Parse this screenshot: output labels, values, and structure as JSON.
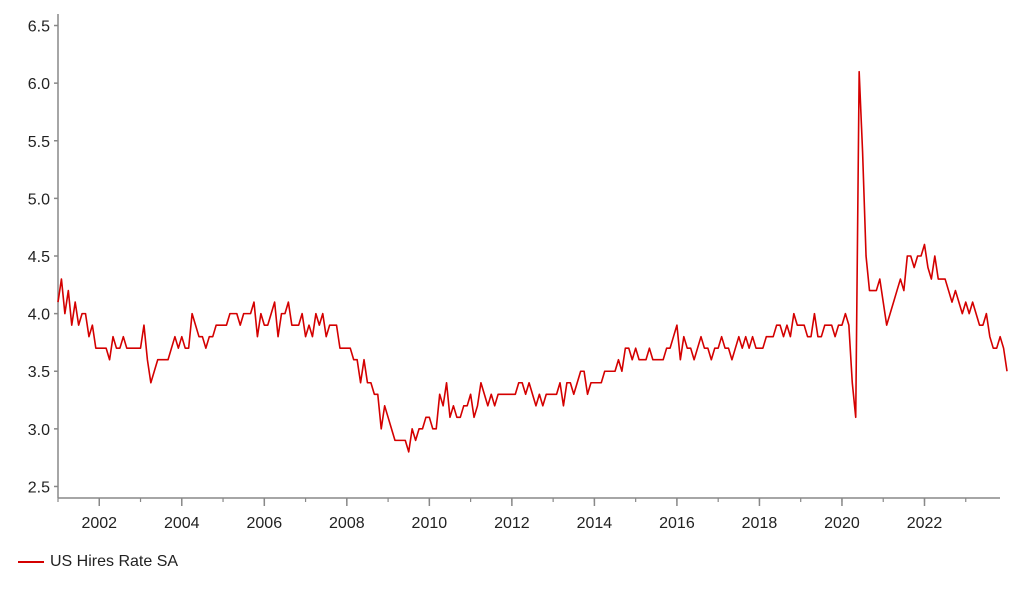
{
  "chart_data": {
    "type": "line",
    "title": "",
    "xlabel": "",
    "ylabel": "",
    "xlim": [
      2001.0,
      2023.83
    ],
    "ylim": [
      2.4,
      6.6
    ],
    "x_ticks": [
      "2002",
      "2004",
      "2006",
      "2008",
      "2010",
      "2012",
      "2014",
      "2016",
      "2018",
      "2020",
      "2022"
    ],
    "y_ticks": [
      "2.5",
      "3.0",
      "3.5",
      "4.0",
      "4.5",
      "5.0",
      "5.5",
      "6.0",
      "6.5"
    ],
    "grid": false,
    "legend_position": "bottom-left",
    "colors": {
      "series": "#d40000",
      "axis": "#888888"
    },
    "series": [
      {
        "name": "US Hires Rate SA",
        "x_start": "2001-01",
        "frequency": "monthly",
        "values": [
          4.1,
          4.3,
          4.0,
          4.2,
          3.9,
          4.1,
          3.9,
          4.0,
          4.0,
          3.8,
          3.9,
          3.7,
          3.7,
          3.7,
          3.7,
          3.6,
          3.8,
          3.7,
          3.7,
          3.8,
          3.7,
          3.7,
          3.7,
          3.7,
          3.7,
          3.9,
          3.6,
          3.4,
          3.5,
          3.6,
          3.6,
          3.6,
          3.6,
          3.7,
          3.8,
          3.7,
          3.8,
          3.7,
          3.7,
          4.0,
          3.9,
          3.8,
          3.8,
          3.7,
          3.8,
          3.8,
          3.9,
          3.9,
          3.9,
          3.9,
          4.0,
          4.0,
          4.0,
          3.9,
          4.0,
          4.0,
          4.0,
          4.1,
          3.8,
          4.0,
          3.9,
          3.9,
          4.0,
          4.1,
          3.8,
          4.0,
          4.0,
          4.1,
          3.9,
          3.9,
          3.9,
          4.0,
          3.8,
          3.9,
          3.8,
          4.0,
          3.9,
          4.0,
          3.8,
          3.9,
          3.9,
          3.9,
          3.7,
          3.7,
          3.7,
          3.7,
          3.6,
          3.6,
          3.4,
          3.6,
          3.4,
          3.4,
          3.3,
          3.3,
          3.0,
          3.2,
          3.1,
          3.0,
          2.9,
          2.9,
          2.9,
          2.9,
          2.8,
          3.0,
          2.9,
          3.0,
          3.0,
          3.1,
          3.1,
          3.0,
          3.0,
          3.3,
          3.2,
          3.4,
          3.1,
          3.2,
          3.1,
          3.1,
          3.2,
          3.2,
          3.3,
          3.1,
          3.2,
          3.4,
          3.3,
          3.2,
          3.3,
          3.2,
          3.3,
          3.3,
          3.3,
          3.3,
          3.3,
          3.3,
          3.4,
          3.4,
          3.3,
          3.4,
          3.3,
          3.2,
          3.3,
          3.2,
          3.3,
          3.3,
          3.3,
          3.3,
          3.4,
          3.2,
          3.4,
          3.4,
          3.3,
          3.4,
          3.5,
          3.5,
          3.3,
          3.4,
          3.4,
          3.4,
          3.4,
          3.5,
          3.5,
          3.5,
          3.5,
          3.6,
          3.5,
          3.7,
          3.7,
          3.6,
          3.7,
          3.6,
          3.6,
          3.6,
          3.7,
          3.6,
          3.6,
          3.6,
          3.6,
          3.7,
          3.7,
          3.8,
          3.9,
          3.6,
          3.8,
          3.7,
          3.7,
          3.6,
          3.7,
          3.8,
          3.7,
          3.7,
          3.6,
          3.7,
          3.7,
          3.8,
          3.7,
          3.7,
          3.6,
          3.7,
          3.8,
          3.7,
          3.8,
          3.7,
          3.8,
          3.7,
          3.7,
          3.7,
          3.8,
          3.8,
          3.8,
          3.9,
          3.9,
          3.8,
          3.9,
          3.8,
          4.0,
          3.9,
          3.9,
          3.9,
          3.8,
          3.8,
          4.0,
          3.8,
          3.8,
          3.9,
          3.9,
          3.9,
          3.8,
          3.9,
          3.9,
          4.0,
          3.9,
          3.4,
          3.1,
          6.1,
          5.4,
          4.5,
          4.2,
          4.2,
          4.2,
          4.3,
          4.1,
          3.9,
          4.0,
          4.1,
          4.2,
          4.3,
          4.2,
          4.5,
          4.5,
          4.4,
          4.5,
          4.5,
          4.6,
          4.4,
          4.3,
          4.5,
          4.3,
          4.3,
          4.3,
          4.2,
          4.1,
          4.2,
          4.1,
          4.0,
          4.1,
          4.0,
          4.1,
          4.0,
          3.9,
          3.9,
          4.0,
          3.8,
          3.7,
          3.7,
          3.8,
          3.7,
          3.5
        ]
      }
    ]
  },
  "legend": {
    "label": "US Hires Rate SA"
  }
}
